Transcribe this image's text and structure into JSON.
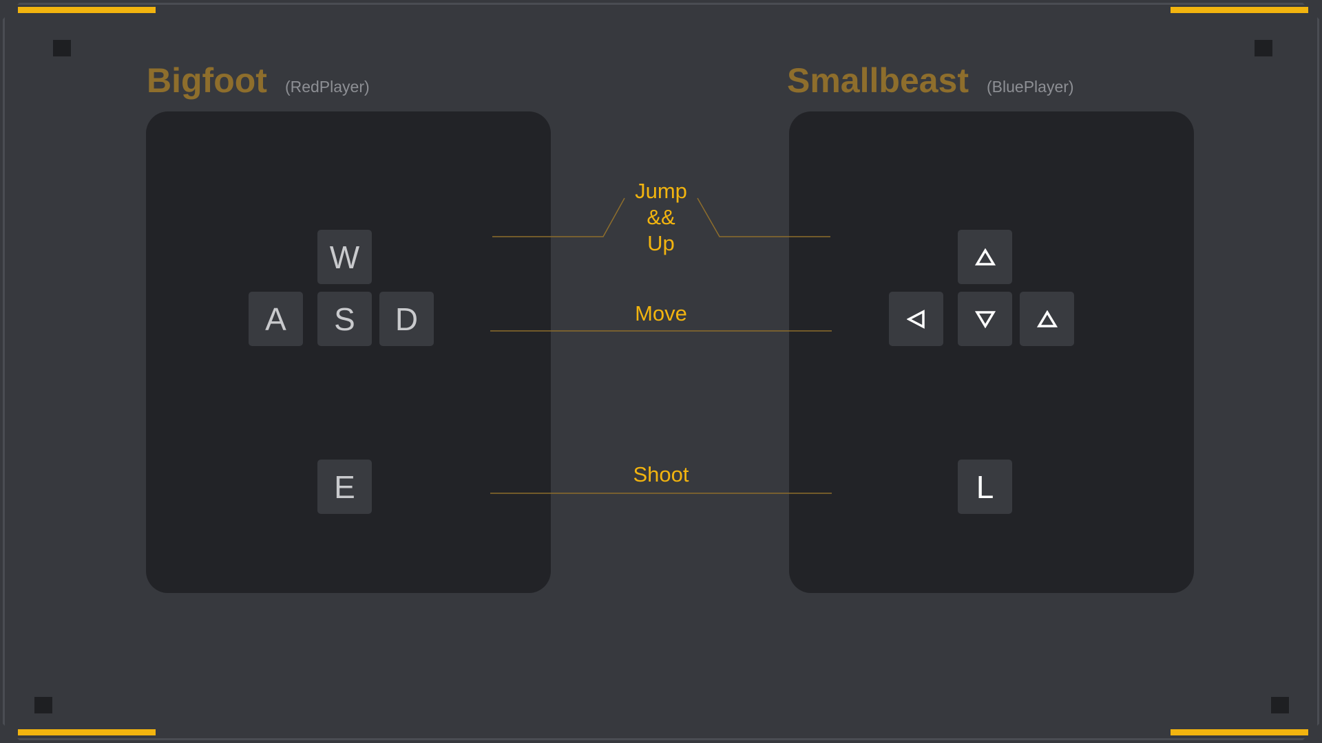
{
  "colors": {
    "accent": "#f2b40f",
    "player_name": "#8e6e2c",
    "panel": "#222327",
    "key": "#393b40",
    "background": "#37393e"
  },
  "players": [
    {
      "name": "Bigfoot",
      "tag": "(RedPlayer)",
      "keys": {
        "up": "W",
        "left": "A",
        "down": "S",
        "right": "D",
        "shoot": "E"
      }
    },
    {
      "name": "Smallbeast",
      "tag": "(BluePlayer)",
      "keys": {
        "up": "arrow-up-icon",
        "left": "arrow-left-icon",
        "down": "arrow-down-icon",
        "right": "arrow-up-icon",
        "shoot": "L"
      }
    }
  ],
  "actions": {
    "jump": [
      "Jump",
      "&&",
      "Up"
    ],
    "move": "Move",
    "shoot": "Shoot"
  }
}
